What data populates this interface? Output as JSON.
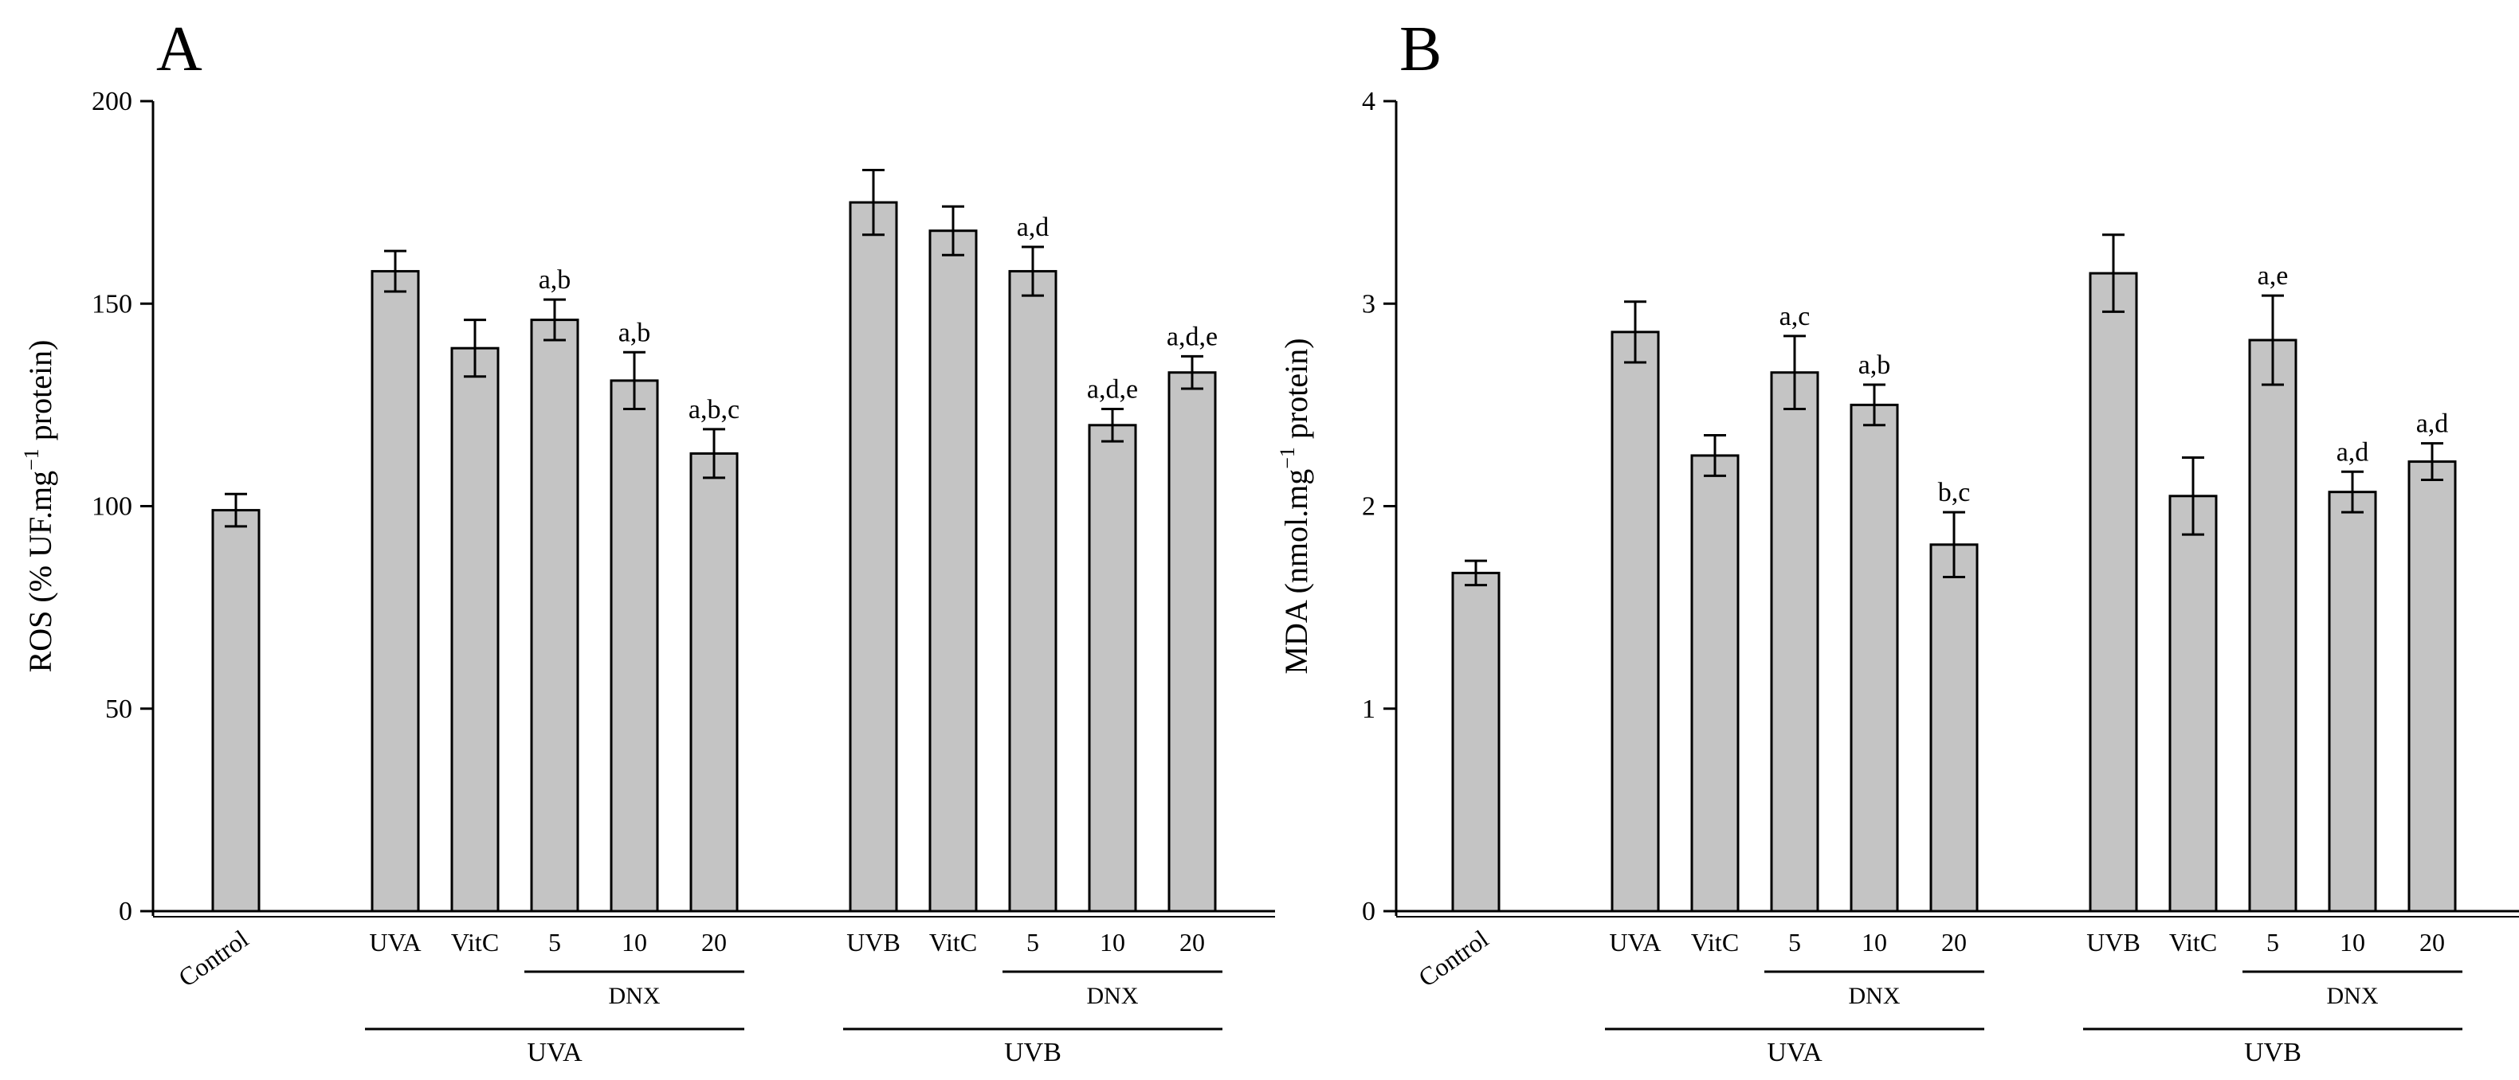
{
  "chart_data": [
    {
      "panel_label": "A",
      "type": "bar",
      "ylabel_main": "ROS (% UF.mg",
      "ylabel_sup": "−1",
      "ylabel_tail": " protein)",
      "ylim": [
        0,
        200
      ],
      "yticks": [
        0,
        50,
        100,
        150,
        200
      ],
      "categories": [
        "Control",
        "UVA",
        "VitC",
        "5",
        "10",
        "20",
        "UVB",
        "VitC",
        "5",
        "10",
        "20"
      ],
      "values": [
        99,
        158,
        139,
        146,
        131,
        113,
        175,
        168,
        158,
        120,
        133
      ],
      "errors": [
        4,
        5,
        7,
        5,
        7,
        6,
        8,
        6,
        6,
        4,
        4
      ],
      "annotations": [
        "",
        "",
        "",
        "a,b",
        "a,b",
        "a,b,c",
        "",
        "",
        "a,d",
        "a,d,e",
        "a,d,e"
      ],
      "groups": [
        {
          "label": "DNX",
          "from": 3,
          "to": 5,
          "level": 1
        },
        {
          "label": "UVA",
          "from": 1,
          "to": 5,
          "level": 2
        },
        {
          "label": "DNX",
          "from": 8,
          "to": 10,
          "level": 1
        },
        {
          "label": "UVB",
          "from": 6,
          "to": 10,
          "level": 2
        }
      ]
    },
    {
      "panel_label": "B",
      "type": "bar",
      "ylabel_main": "MDA (nmol.mg",
      "ylabel_sup": "−1",
      "ylabel_tail": " protein)",
      "ylim": [
        0,
        4
      ],
      "yticks": [
        0,
        1,
        2,
        3,
        4
      ],
      "categories": [
        "Control",
        "UVA",
        "VitC",
        "5",
        "10",
        "20",
        "UVB",
        "VitC",
        "5",
        "10",
        "20"
      ],
      "values": [
        1.67,
        2.86,
        2.25,
        2.66,
        2.5,
        1.81,
        3.15,
        2.05,
        2.82,
        2.07,
        2.22
      ],
      "errors": [
        0.06,
        0.15,
        0.1,
        0.18,
        0.1,
        0.16,
        0.19,
        0.19,
        0.22,
        0.1,
        0.09
      ],
      "annotations": [
        "",
        "",
        "",
        "a,c",
        "a,b",
        "b,c",
        "",
        "",
        "a,e",
        "a,d",
        "a,d"
      ],
      "groups": [
        {
          "label": "DNX",
          "from": 3,
          "to": 5,
          "level": 1
        },
        {
          "label": "UVA",
          "from": 1,
          "to": 5,
          "level": 2
        },
        {
          "label": "DNX",
          "from": 8,
          "to": 10,
          "level": 1
        },
        {
          "label": "UVB",
          "from": 6,
          "to": 10,
          "level": 2
        }
      ]
    }
  ],
  "colors": {
    "bar_fill": "#c4c4c4",
    "stroke": "#000000",
    "background": "#ffffff"
  }
}
